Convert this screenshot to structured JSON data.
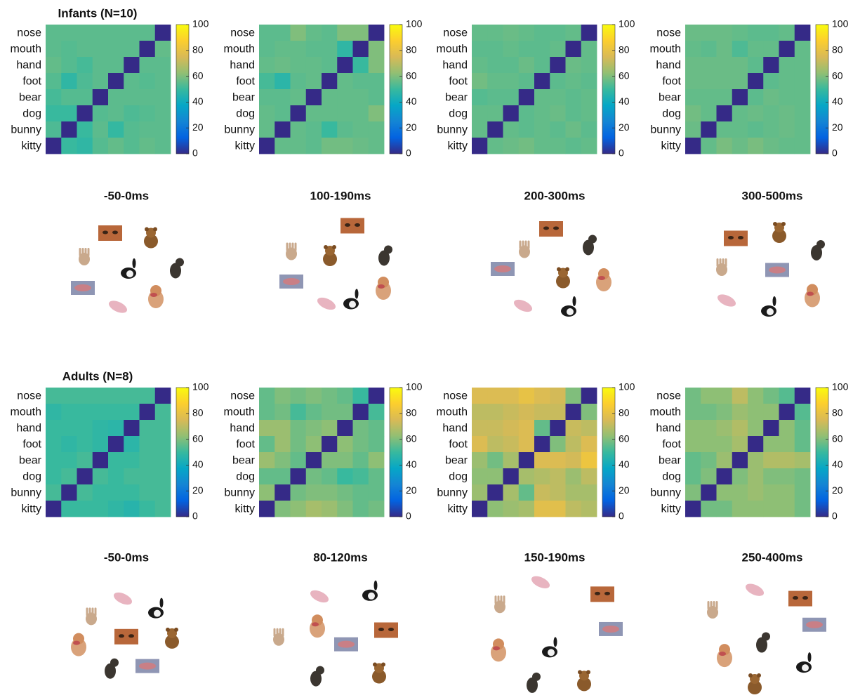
{
  "chart_data": [
    {
      "type": "heatmap",
      "title": "Infants (N=10)",
      "colormap": "parula",
      "categories": [
        "nose",
        "mouth",
        "hand",
        "foot",
        "bear",
        "dog",
        "bunny",
        "kitty"
      ],
      "values": [
        [
          55,
          55,
          55,
          55,
          55,
          55,
          55,
          0
        ],
        [
          55,
          54,
          55,
          55,
          55,
          55,
          0,
          56
        ],
        [
          56,
          54,
          52,
          55,
          55,
          0,
          55,
          55
        ],
        [
          54,
          48,
          53,
          55,
          0,
          55,
          54,
          55
        ],
        [
          52,
          54,
          54,
          0,
          55,
          55,
          55,
          55
        ],
        [
          50,
          50,
          0,
          54,
          55,
          53,
          54,
          55
        ],
        [
          53,
          0,
          50,
          55,
          49,
          54,
          55,
          55
        ],
        [
          0,
          50,
          48,
          54,
          56,
          54,
          56,
          55
        ]
      ],
      "zlim": [
        0,
        100
      ],
      "zticks": [
        0,
        20,
        40,
        60,
        80,
        100
      ]
    },
    {
      "type": "heatmap",
      "colormap": "parula",
      "categories": [
        "nose",
        "mouth",
        "hand",
        "foot",
        "bear",
        "dog",
        "bunny",
        "kitty"
      ],
      "values": [
        [
          55,
          55,
          60,
          56,
          55,
          60,
          60,
          0
        ],
        [
          55,
          56,
          56,
          55,
          55,
          48,
          0,
          60
        ],
        [
          56,
          57,
          56,
          56,
          55,
          0,
          50,
          60
        ],
        [
          52,
          47,
          55,
          56,
          0,
          56,
          55,
          55
        ],
        [
          55,
          55,
          56,
          0,
          56,
          56,
          56,
          55
        ],
        [
          56,
          55,
          0,
          56,
          56,
          56,
          56,
          60
        ],
        [
          56,
          0,
          56,
          55,
          50,
          55,
          56,
          56
        ],
        [
          0,
          56,
          56,
          55,
          58,
          58,
          57,
          56
        ]
      ],
      "zlim": [
        0,
        100
      ],
      "zticks": [
        0,
        20,
        40,
        60,
        80,
        100
      ]
    },
    {
      "type": "heatmap",
      "colormap": "parula",
      "categories": [
        "nose",
        "mouth",
        "hand",
        "foot",
        "bear",
        "dog",
        "bunny",
        "kitty"
      ],
      "values": [
        [
          56,
          56,
          57,
          56,
          55,
          55,
          56,
          0
        ],
        [
          55,
          55,
          56,
          55,
          55,
          56,
          0,
          56
        ],
        [
          56,
          55,
          55,
          57,
          55,
          0,
          57,
          56
        ],
        [
          58,
          56,
          56,
          55,
          0,
          55,
          56,
          55
        ],
        [
          54,
          55,
          55,
          0,
          56,
          56,
          55,
          56
        ],
        [
          56,
          56,
          0,
          55,
          56,
          57,
          55,
          56
        ],
        [
          56,
          0,
          56,
          55,
          56,
          55,
          57,
          55
        ],
        [
          0,
          56,
          57,
          58,
          56,
          56,
          55,
          56
        ]
      ],
      "zlim": [
        0,
        100
      ],
      "zticks": [
        0,
        20,
        40,
        60,
        80,
        100
      ]
    },
    {
      "type": "heatmap",
      "colormap": "parula",
      "categories": [
        "nose",
        "mouth",
        "hand",
        "foot",
        "bear",
        "dog",
        "bunny",
        "kitty"
      ],
      "values": [
        [
          57,
          57,
          57,
          56,
          55,
          55,
          56,
          0
        ],
        [
          56,
          55,
          57,
          53,
          56,
          56,
          0,
          56
        ],
        [
          57,
          57,
          57,
          57,
          55,
          0,
          56,
          56
        ],
        [
          57,
          57,
          57,
          57,
          0,
          55,
          56,
          56
        ],
        [
          56,
          56,
          56,
          0,
          55,
          57,
          56,
          56
        ],
        [
          58,
          56,
          0,
          56,
          57,
          56,
          57,
          56
        ],
        [
          57,
          0,
          56,
          56,
          55,
          56,
          57,
          56
        ],
        [
          0,
          56,
          59,
          57,
          59,
          57,
          56,
          56
        ]
      ],
      "zlim": [
        0,
        100
      ],
      "zticks": [
        0,
        20,
        40,
        60,
        80,
        100
      ]
    },
    {
      "type": "scatter",
      "title": "-50-0ms",
      "x": [
        38.5,
        19,
        20,
        44,
        67.5,
        71,
        51.5,
        85
      ],
      "y": [
        82,
        30,
        60,
        12,
        77,
        22,
        46,
        49
      ]
    },
    {
      "type": "scatter",
      "title": "100-190ms",
      "x": [
        58.5,
        15,
        15,
        40,
        42.5,
        80.5,
        57.5,
        81
      ],
      "y": [
        89,
        36,
        65,
        15,
        60,
        30,
        17,
        61
      ]
    },
    {
      "type": "scatter",
      "title": "200-300ms",
      "x": [
        47.5,
        13,
        28.5,
        27.5,
        56,
        85,
        60,
        74
      ],
      "y": [
        86,
        48,
        67,
        13,
        39,
        38,
        10,
        71
      ]
    },
    {
      "type": "scatter",
      "title": "300-500ms",
      "x": [
        24,
        53.5,
        14,
        17.5,
        55,
        78.5,
        47.5,
        81.5
      ],
      "y": [
        77,
        47,
        50,
        18,
        82,
        23,
        10,
        66
      ]
    },
    {
      "type": "heatmap",
      "title": "Adults (N=8)",
      "colormap": "parula",
      "categories": [
        "nose",
        "mouth",
        "hand",
        "foot",
        "bear",
        "dog",
        "bunny",
        "kitty"
      ],
      "values": [
        [
          52,
          52,
          52,
          52,
          52,
          52,
          52,
          0
        ],
        [
          48,
          50,
          50,
          50,
          50,
          50,
          0,
          52
        ],
        [
          50,
          50,
          50,
          48,
          47,
          0,
          52,
          52
        ],
        [
          50,
          48,
          50,
          48,
          0,
          47,
          52,
          52
        ],
        [
          50,
          50,
          52,
          0,
          50,
          50,
          52,
          52
        ],
        [
          50,
          52,
          0,
          52,
          50,
          52,
          52,
          52
        ],
        [
          52,
          0,
          52,
          50,
          50,
          50,
          52,
          52
        ],
        [
          0,
          50,
          50,
          50,
          48,
          46,
          50,
          52
        ]
      ],
      "zlim": [
        0,
        100
      ],
      "zticks": [
        0,
        20,
        40,
        60,
        80,
        100
      ]
    },
    {
      "type": "heatmap",
      "colormap": "parula",
      "categories": [
        "nose",
        "mouth",
        "hand",
        "foot",
        "bear",
        "dog",
        "bunny",
        "kitty"
      ],
      "values": [
        [
          56,
          60,
          58,
          60,
          58,
          56,
          50,
          0
        ],
        [
          56,
          58,
          52,
          56,
          58,
          58,
          0,
          52
        ],
        [
          64,
          64,
          58,
          60,
          62,
          0,
          58,
          56
        ],
        [
          56,
          64,
          58,
          62,
          0,
          62,
          58,
          56
        ],
        [
          64,
          60,
          56,
          0,
          60,
          60,
          56,
          62
        ],
        [
          56,
          56,
          0,
          58,
          56,
          50,
          52,
          56
        ],
        [
          62,
          0,
          58,
          60,
          60,
          58,
          56,
          56
        ],
        [
          0,
          60,
          62,
          66,
          64,
          60,
          56,
          58
        ]
      ],
      "zlim": [
        0,
        100
      ],
      "zticks": [
        0,
        20,
        40,
        60,
        80,
        100
      ]
    },
    {
      "type": "heatmap",
      "colormap": "parula",
      "categories": [
        "nose",
        "mouth",
        "hand",
        "foot",
        "bear",
        "dog",
        "bunny",
        "kitty"
      ],
      "values": [
        [
          76,
          76,
          76,
          80,
          76,
          74,
          60,
          0
        ],
        [
          70,
          70,
          72,
          74,
          72,
          72,
          0,
          60
        ],
        [
          72,
          72,
          74,
          76,
          56,
          0,
          72,
          70
        ],
        [
          76,
          70,
          72,
          76,
          0,
          60,
          70,
          76
        ],
        [
          64,
          58,
          66,
          0,
          76,
          76,
          74,
          82
        ],
        [
          62,
          62,
          0,
          66,
          68,
          70,
          64,
          70
        ],
        [
          64,
          0,
          66,
          56,
          72,
          70,
          66,
          66
        ],
        [
          0,
          62,
          64,
          66,
          78,
          78,
          70,
          68
        ]
      ],
      "zlim": [
        0,
        100
      ],
      "zticks": [
        0,
        20,
        40,
        60,
        80,
        100
      ]
    },
    {
      "type": "heatmap",
      "colormap": "parula",
      "categories": [
        "nose",
        "mouth",
        "hand",
        "foot",
        "bear",
        "dog",
        "bunny",
        "kitty"
      ],
      "values": [
        [
          58,
          62,
          62,
          70,
          62,
          58,
          54,
          0
        ],
        [
          58,
          58,
          60,
          64,
          62,
          62,
          0,
          54
        ],
        [
          62,
          62,
          64,
          68,
          62,
          0,
          62,
          56
        ],
        [
          62,
          62,
          62,
          66,
          0,
          62,
          62,
          56
        ],
        [
          56,
          58,
          64,
          0,
          64,
          68,
          68,
          66
        ],
        [
          56,
          60,
          0,
          60,
          64,
          60,
          60,
          58
        ],
        [
          60,
          0,
          62,
          62,
          64,
          62,
          62,
          58
        ],
        [
          0,
          58,
          58,
          62,
          62,
          62,
          62,
          58
        ]
      ],
      "zlim": [
        0,
        100
      ],
      "zticks": [
        0,
        20,
        40,
        60,
        80,
        100
      ]
    },
    {
      "type": "scatter",
      "title": "-50-0ms",
      "x": [
        50,
        65,
        25,
        47.5,
        82.5,
        16,
        71,
        38.5
      ],
      "y": [
        44,
        17,
        63,
        79,
        42,
        37,
        68,
        15
      ]
    },
    {
      "type": "scatter",
      "title": "80-120ms",
      "x": [
        82.5,
        54,
        6,
        35,
        77.5,
        33.5,
        71,
        32.5
      ],
      "y": [
        50,
        37,
        44,
        81,
        10,
        54,
        84,
        8
      ]
    },
    {
      "type": "scatter",
      "title": "150-190ms",
      "x": [
        84,
        90,
        11,
        40,
        71,
        10,
        46.5,
        34
      ],
      "y": [
        83,
        51,
        74,
        94,
        3,
        32,
        32,
        2
      ]
    },
    {
      "type": "scatter",
      "title": "250-400ms",
      "x": [
        70,
        80,
        7.5,
        37.5,
        37.5,
        16,
        72.5,
        42.5
      ],
      "y": [
        79,
        55,
        69,
        87,
        0,
        27,
        18,
        39
      ]
    }
  ]
}
